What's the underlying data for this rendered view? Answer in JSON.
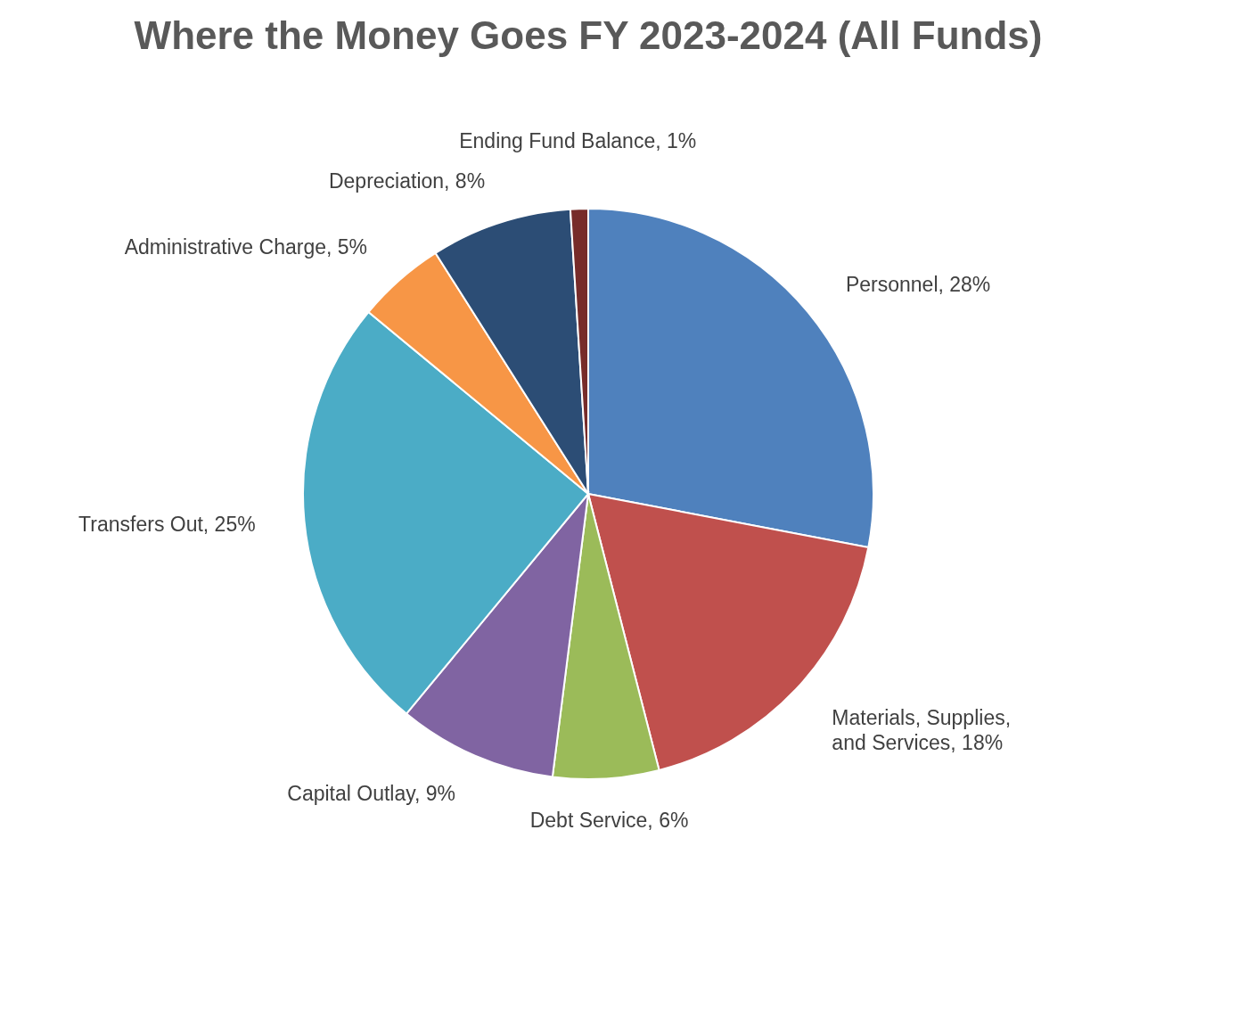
{
  "chart_data": {
    "type": "pie",
    "title": "Where the Money Goes FY 2023-2024 (All Funds)",
    "categories": [
      "Personnel",
      "Materials, Supplies, and Services",
      "Debt Service",
      "Capital Outlay",
      "Transfers Out",
      "Administrative Charge",
      "Depreciation",
      "Ending Fund Balance"
    ],
    "values": [
      28,
      18,
      6,
      9,
      25,
      5,
      8,
      1
    ],
    "value_labels": [
      "28%",
      "18%",
      "6%",
      "9%",
      "25%",
      "5%",
      "8%",
      "1%"
    ],
    "colors": [
      "#4f81bd",
      "#c0504d",
      "#9bbb59",
      "#8064a2",
      "#4bacc6",
      "#f79646",
      "#2c4d75",
      "#772c2a"
    ],
    "legend": false
  }
}
